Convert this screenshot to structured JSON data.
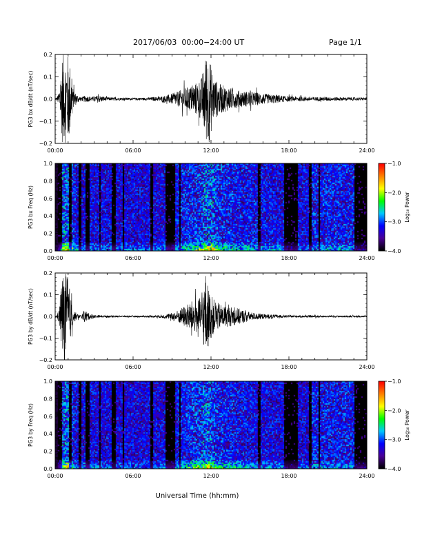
{
  "header": {
    "title": "2017/06/03  00:00−24:00 UT",
    "page": "Page 1/1"
  },
  "chart_data": [
    {
      "type": "line",
      "id": "bx-waveform",
      "ylabel": "PG3 bx dB/dt (nT/sec)",
      "ylim": [
        -0.2,
        0.2
      ],
      "yticks": [
        "0.2",
        "0.1",
        "0.0",
        "−0.1",
        "−0.2"
      ],
      "yticks_values": [
        0.2,
        0.1,
        0.0,
        -0.1,
        -0.2
      ],
      "xlim": [
        0,
        24
      ],
      "xticks": [
        "00:00",
        "06:00",
        "12:00",
        "18:00",
        "24:00"
      ],
      "xticks_values": [
        0,
        6,
        12,
        18,
        24
      ],
      "envelope": {
        "x": [
          0,
          0.1,
          0.3,
          0.55,
          0.75,
          0.9,
          1.05,
          1.2,
          1.4,
          1.7,
          2.0,
          2.3,
          2.6,
          3.0,
          3.3,
          3.6,
          4.0,
          5.0,
          6.0,
          7.0,
          8.0,
          8.8,
          9.5,
          10.0,
          10.5,
          11.0,
          11.3,
          11.6,
          11.85,
          12.2,
          12.6,
          13.0,
          13.5,
          14.0,
          14.5,
          15.0,
          15.5,
          16.0,
          16.5,
          17.0,
          17.5,
          18.0,
          19.0,
          20.0,
          21.0,
          22.0,
          23.0,
          24.0
        ],
        "y": [
          0.005,
          0.006,
          0.03,
          0.2,
          0.2,
          0.2,
          0.2,
          0.13,
          0.04,
          0.02,
          0.008,
          0.015,
          0.012,
          0.01,
          0.018,
          0.012,
          0.008,
          0.006,
          0.005,
          0.006,
          0.01,
          0.02,
          0.035,
          0.05,
          0.06,
          0.08,
          0.1,
          0.2,
          0.2,
          0.1,
          0.07,
          0.06,
          0.05,
          0.04,
          0.035,
          0.035,
          0.03,
          0.025,
          0.02,
          0.02,
          0.015,
          0.012,
          0.01,
          0.009,
          0.009,
          0.008,
          0.007,
          0.006
        ]
      }
    },
    {
      "type": "heatmap",
      "id": "bx-spectrogram",
      "ylabel": "PG3 bx Freq (Hz)",
      "ylim": [
        0.0,
        1.0
      ],
      "yticks": [
        "1.0",
        "0.8",
        "0.6",
        "0.4",
        "0.2",
        "0.0"
      ],
      "yticks_values": [
        1.0,
        0.8,
        0.6,
        0.4,
        0.2,
        0.0
      ],
      "xlim": [
        0,
        24
      ],
      "xticks": [
        "00:00",
        "06:00",
        "12:00",
        "18:00",
        "24:00"
      ],
      "xticks_values": [
        0,
        6,
        12,
        18,
        24
      ],
      "colorbar": {
        "label": "Log₁₀ Power",
        "range": [
          -4.0,
          -1.0
        ],
        "ticks": [
          "−1.0",
          "−2.0",
          "−3.0",
          "−4.0"
        ],
        "ticks_values": [
          -1.0,
          -2.0,
          -3.0,
          -4.0
        ],
        "colors": [
          "#000000",
          "#4a0096",
          "#0000ff",
          "#00c8ff",
          "#00ff00",
          "#ffff00",
          "#ff8000",
          "#ff0000"
        ]
      },
      "dark_gaps_hours": [
        [
          0.2,
          0.5
        ],
        [
          1.05,
          1.25
        ],
        [
          1.7,
          2.0
        ],
        [
          2.3,
          2.6
        ],
        [
          3.3,
          3.5
        ],
        [
          4.3,
          4.6
        ],
        [
          5.1,
          5.25
        ],
        [
          7.3,
          7.45
        ],
        [
          8.4,
          9.2
        ],
        [
          9.5,
          9.6
        ],
        [
          15.6,
          15.8
        ],
        [
          17.6,
          18.6
        ],
        [
          19.5,
          19.7
        ],
        [
          20.2,
          20.35
        ],
        [
          23.0,
          24.0
        ]
      ]
    },
    {
      "type": "line",
      "id": "by-waveform",
      "ylabel": "PG3 by dB/dt (nT/sec)",
      "ylim": [
        -0.2,
        0.2
      ],
      "yticks": [
        "0.2",
        "0.1",
        "0.0",
        "−0.1",
        "−0.2"
      ],
      "yticks_values": [
        0.2,
        0.1,
        0.0,
        -0.1,
        -0.2
      ],
      "xlim": [
        0,
        24
      ],
      "xticks": [
        "00:00",
        "06:00",
        "12:00",
        "18:00",
        "24:00"
      ],
      "xticks_values": [
        0,
        6,
        12,
        18,
        24
      ],
      "envelope": {
        "x": [
          0,
          0.1,
          0.3,
          0.55,
          0.75,
          0.9,
          1.05,
          1.2,
          1.4,
          1.7,
          2.0,
          2.3,
          2.6,
          3.0,
          3.3,
          3.6,
          4.0,
          5.0,
          6.0,
          7.0,
          8.0,
          8.8,
          9.5,
          10.0,
          10.5,
          11.0,
          11.3,
          11.6,
          11.85,
          12.2,
          12.6,
          13.0,
          13.5,
          14.0,
          14.5,
          15.0,
          15.5,
          16.0,
          16.5,
          17.0,
          17.5,
          18.0,
          19.0,
          20.0,
          21.0,
          22.0,
          23.0,
          24.0
        ],
        "y": [
          0.005,
          0.006,
          0.03,
          0.2,
          0.2,
          0.2,
          0.16,
          0.09,
          0.03,
          0.012,
          0.006,
          0.03,
          0.015,
          0.008,
          0.006,
          0.005,
          0.005,
          0.004,
          0.004,
          0.004,
          0.006,
          0.012,
          0.03,
          0.05,
          0.07,
          0.08,
          0.09,
          0.2,
          0.12,
          0.08,
          0.06,
          0.05,
          0.045,
          0.04,
          0.03,
          0.02,
          0.015,
          0.012,
          0.01,
          0.008,
          0.006,
          0.005,
          0.005,
          0.005,
          0.004,
          0.004,
          0.004,
          0.004
        ]
      }
    },
    {
      "type": "heatmap",
      "id": "by-spectrogram",
      "ylabel": "PG3 by Freq (Hz)",
      "ylim": [
        0.0,
        1.0
      ],
      "yticks": [
        "1.0",
        "0.8",
        "0.6",
        "0.4",
        "0.2",
        "0.0"
      ],
      "yticks_values": [
        1.0,
        0.8,
        0.6,
        0.4,
        0.2,
        0.0
      ],
      "xlim": [
        0,
        24
      ],
      "xticks": [
        "00:00",
        "06:00",
        "12:00",
        "18:00",
        "24:00"
      ],
      "xticks_values": [
        0,
        6,
        12,
        18,
        24
      ],
      "xlabel": "Universal Time (hh:mm)",
      "colorbar": {
        "label": "Log₁₀ Power",
        "range": [
          -4.0,
          -1.0
        ],
        "ticks": [
          "−1.0",
          "−2.0",
          "−3.0",
          "−4.0"
        ],
        "ticks_values": [
          -1.0,
          -2.0,
          -3.0,
          -4.0
        ],
        "colors": [
          "#000000",
          "#4a0096",
          "#0000ff",
          "#00c8ff",
          "#00ff00",
          "#ffff00",
          "#ff8000",
          "#ff0000"
        ]
      },
      "dark_gaps_hours": [
        [
          0.2,
          0.5
        ],
        [
          1.05,
          1.25
        ],
        [
          1.7,
          2.0
        ],
        [
          2.3,
          2.6
        ],
        [
          3.3,
          3.5
        ],
        [
          4.3,
          4.6
        ],
        [
          5.1,
          5.25
        ],
        [
          7.3,
          7.45
        ],
        [
          8.4,
          9.2
        ],
        [
          9.5,
          9.6
        ],
        [
          15.6,
          15.8
        ],
        [
          17.6,
          18.6
        ],
        [
          19.5,
          19.7
        ],
        [
          20.2,
          20.35
        ],
        [
          23.0,
          24.0
        ]
      ]
    }
  ]
}
